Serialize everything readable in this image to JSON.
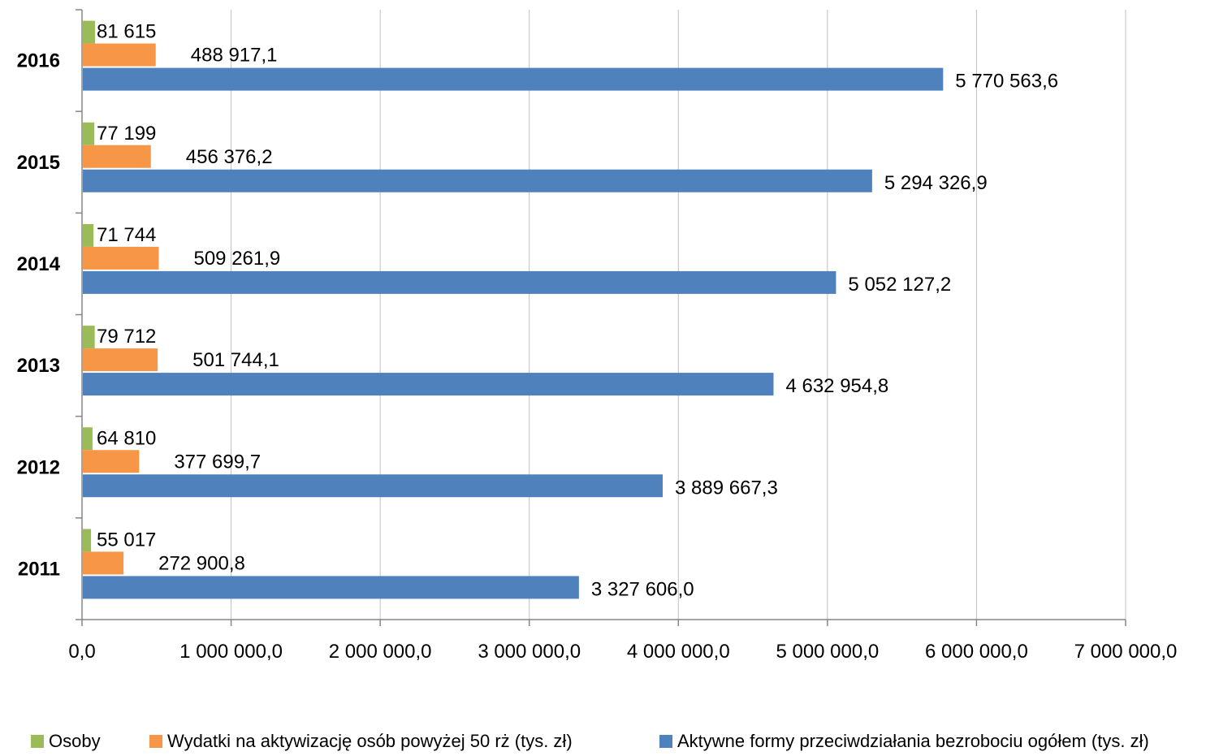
{
  "chart_data": {
    "type": "bar",
    "orientation": "horizontal",
    "categories": [
      "2011",
      "2012",
      "2013",
      "2014",
      "2015",
      "2016"
    ],
    "series": [
      {
        "name": "Osoby",
        "color": "#9BBB59",
        "values": [
          55017,
          64810,
          79712,
          71744,
          77199,
          81615
        ],
        "labels": [
          "55 017",
          "64 810",
          "79 712",
          "71 744",
          "77 199",
          "81 615"
        ]
      },
      {
        "name": "Wydatki na aktywizację osób powyżej 50 rż (tys. zł)",
        "color": "#F79646",
        "values": [
          272900.8,
          377699.7,
          501744.1,
          509261.9,
          456376.2,
          488917.1
        ],
        "labels": [
          "272 900,8",
          "377 699,7",
          "501 744,1",
          "509 261,9",
          "456 376,2",
          "488 917,1"
        ]
      },
      {
        "name": "Aktywne formy przeciwdziałania bezrobociu ogółem (tys. zł)",
        "color": "#4F81BD",
        "values": [
          3327606.0,
          3889667.3,
          4632954.8,
          5052127.2,
          5294326.9,
          5770563.6
        ],
        "labels": [
          "3 327 606,0",
          "3 889 667,3",
          "4 632 954,8",
          "5 052 127,2",
          "5 294 326,9",
          "5 770 563,6"
        ]
      }
    ],
    "xlim": [
      0,
      7000000
    ],
    "x_ticks": [
      0,
      1000000,
      2000000,
      3000000,
      4000000,
      5000000,
      6000000,
      7000000
    ],
    "x_tick_labels": [
      "0,0",
      "1 000 000,0",
      "2 000 000,0",
      "3 000 000,0",
      "4 000 000,0",
      "5 000 000,0",
      "6 000 000,0",
      "7 000 000,0"
    ],
    "grid": "vertical",
    "legend_position": "bottom",
    "title": "",
    "xlabel": "",
    "ylabel": ""
  }
}
